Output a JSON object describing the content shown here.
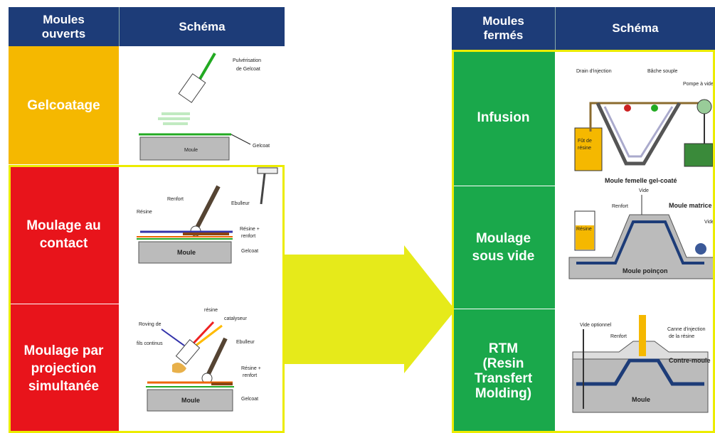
{
  "left_table": {
    "header": [
      "Moules ouverts",
      "Schéma"
    ],
    "rows": [
      {
        "label": "Gelcoatage",
        "schema": [
          "Pulvérisation",
          "de Gelcoat",
          "Moule",
          "Gelcoat"
        ]
      },
      {
        "label": "Moulage au contact",
        "schema": [
          "Renfort",
          "Ebulleur",
          "Résine",
          "Résine +",
          "renfort",
          "Moule",
          "Gelcoat"
        ]
      },
      {
        "label": "Moulage par projection simultanée",
        "schema": [
          "résine",
          "catalyseur",
          "Roving de",
          "fils continus",
          "Ebulleur",
          "Résine +",
          "renfort",
          "Moule",
          "Gelcoat"
        ]
      }
    ]
  },
  "right_table": {
    "header": [
      "Moules fermés",
      "Schéma"
    ],
    "rows": [
      {
        "label": "Infusion",
        "schema": [
          "Drain d'injection",
          "Bâche souple",
          "Pompe à vide",
          "Fût de",
          "résine",
          "Moule femelle gel-coaté"
        ]
      },
      {
        "label": "Moulage sous vide",
        "schema": [
          "Vide",
          "Renfort",
          "Moule matrice",
          "Vide",
          "Résine",
          "Moule poinçon"
        ]
      },
      {
        "label": "RTM (Resin Transfert Molding)",
        "schema": [
          "Vide optionnel",
          "Renfort",
          "Canne d'injection",
          "de la résine",
          "Contre-moule",
          "Moule"
        ]
      }
    ]
  }
}
